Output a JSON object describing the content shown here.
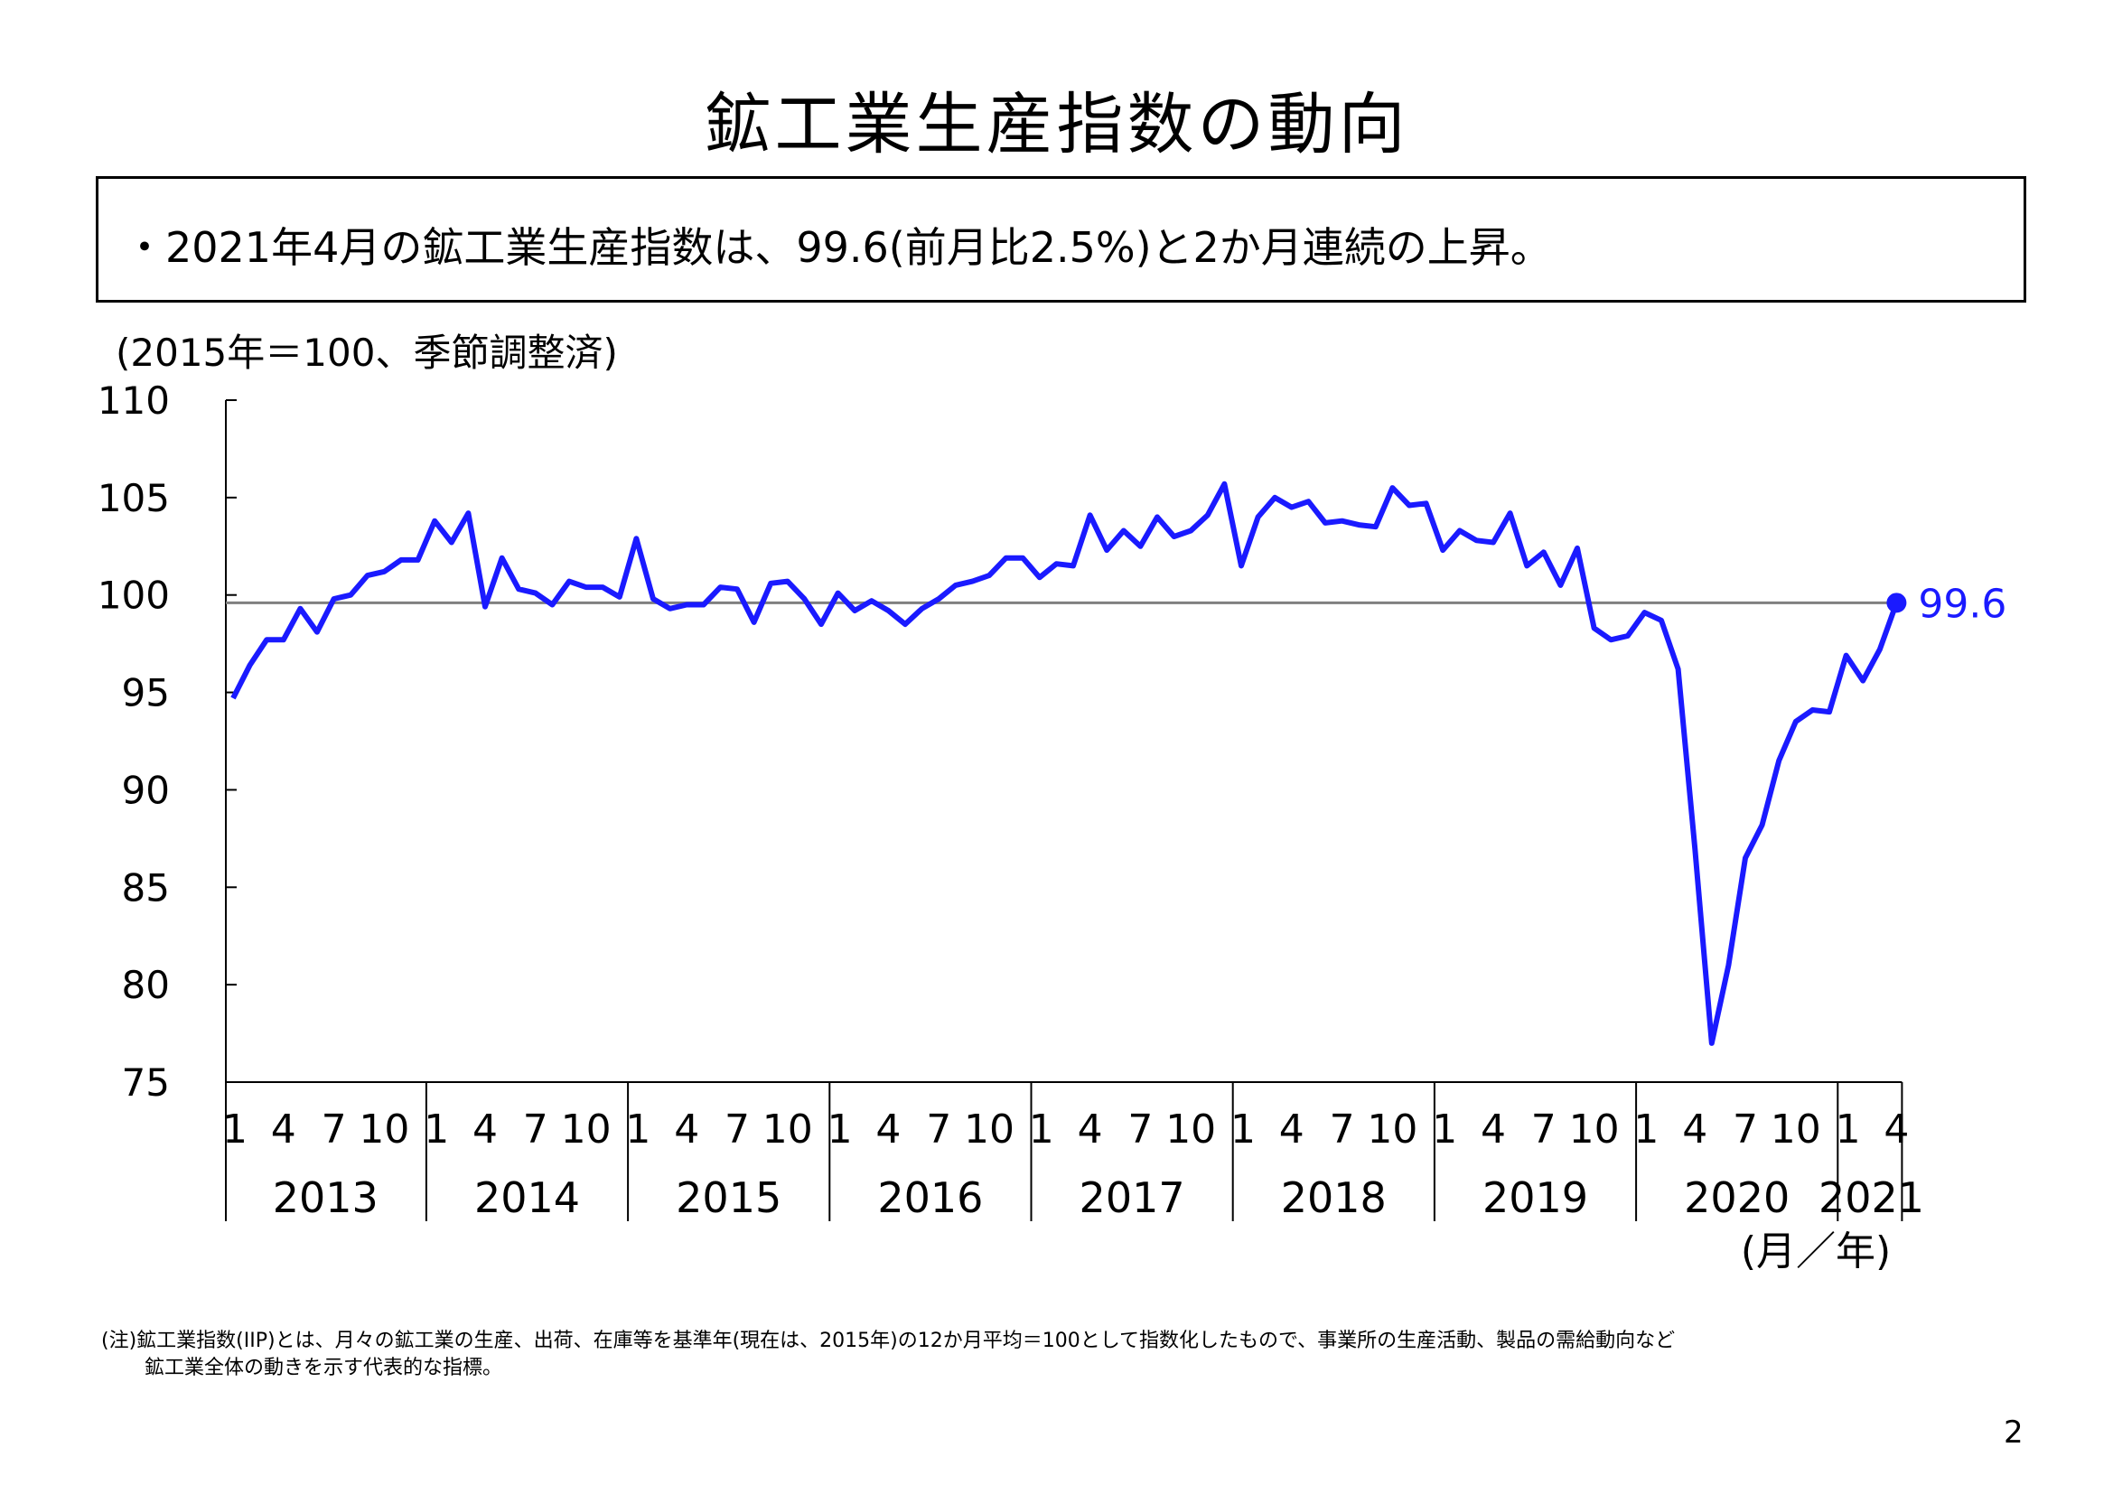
{
  "title": "鉱工業生産指数の動向",
  "summary": "・2021年4月の鉱工業生産指数は、99.6(前月比2.5%)と2か月連続の上昇。",
  "unit_note": "(2015年＝100、季節調整済)",
  "footnote": {
    "line1": "(注)鉱工業指数(IIP)とは、月々の鉱工業の生産、出荷、在庫等を基準年(現在は、2015年)の12か月平均＝100として指数化したもので、事業所の生産活動、製品の需給動向など",
    "line2": "鉱工業全体の動きを示す代表的な指標。"
  },
  "page_number": "2",
  "chart_data": {
    "type": "line",
    "title": "",
    "xlabel": "(月／年)",
    "ylabel": "",
    "ylim": [
      75,
      110
    ],
    "yticks": [
      75,
      80,
      85,
      90,
      95,
      100,
      105,
      110
    ],
    "month_tick_labels": [
      "1",
      "4",
      "7",
      "10"
    ],
    "years": [
      "2013",
      "2014",
      "2015",
      "2016",
      "2017",
      "2018",
      "2019",
      "2020",
      "2021"
    ],
    "start": "2013-01",
    "end": "2021-04",
    "reference_line": 99.6,
    "last_point_label": "99.6",
    "grid": false,
    "series": [
      {
        "name": "",
        "color": "#1a1aff",
        "values": [
          94.7,
          96.4,
          97.7,
          97.7,
          99.3,
          98.1,
          99.8,
          100.0,
          101.0,
          101.2,
          101.8,
          101.8,
          103.8,
          102.7,
          104.2,
          99.4,
          101.9,
          100.3,
          100.1,
          99.5,
          100.7,
          100.4,
          100.4,
          99.9,
          102.9,
          99.8,
          99.3,
          99.5,
          99.5,
          100.4,
          100.3,
          98.6,
          100.6,
          100.7,
          99.8,
          98.5,
          100.1,
          99.2,
          99.7,
          99.2,
          98.5,
          99.3,
          99.8,
          100.5,
          100.7,
          101.0,
          101.9,
          101.9,
          100.9,
          101.6,
          101.5,
          104.1,
          102.3,
          103.3,
          102.5,
          104.0,
          103.0,
          103.3,
          104.1,
          105.7,
          101.5,
          104.0,
          105.0,
          104.5,
          104.8,
          103.7,
          103.8,
          103.6,
          103.5,
          105.5,
          104.6,
          104.7,
          102.3,
          103.3,
          102.8,
          102.7,
          104.2,
          101.5,
          102.2,
          100.5,
          102.4,
          98.3,
          97.7,
          97.9,
          99.1,
          98.7,
          96.2,
          87.0,
          77.0,
          81.0,
          86.5,
          88.2,
          91.5,
          93.5,
          94.1,
          94.0,
          96.9,
          95.6,
          97.2,
          99.6
        ]
      }
    ]
  }
}
